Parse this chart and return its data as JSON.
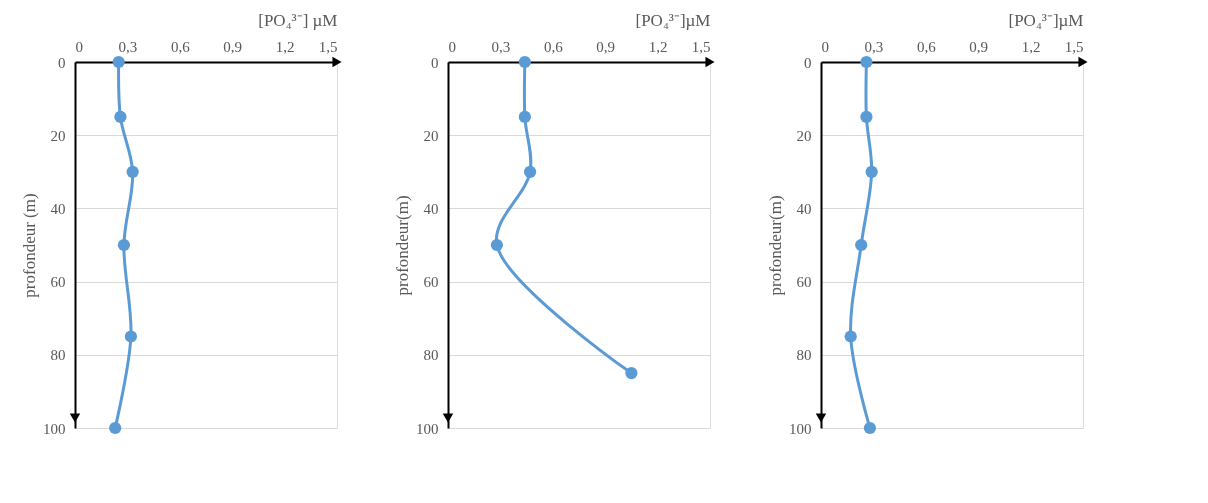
{
  "chart_data": [
    {
      "type": "line",
      "xlabel": "[PO₄³⁻] µM",
      "ylabel": "profondeur (m)",
      "xlim": [
        0,
        1.5
      ],
      "ylim": [
        100,
        0
      ],
      "xticks": [
        0,
        {
          "value": 0.3,
          "label": "0,3"
        },
        {
          "value": 0.6,
          "label": "0,6"
        },
        {
          "value": 0.9,
          "label": "0,9"
        },
        {
          "value": 1.2,
          "label": "1,2"
        },
        {
          "value": 1.5,
          "label": "1,5"
        }
      ],
      "yticks": [
        0,
        20,
        40,
        60,
        80,
        100
      ],
      "grid": "y",
      "marker": "circle",
      "series": [
        {
          "color": "#5b9bd5",
          "x": [
            0.25,
            0.26,
            0.33,
            0.28,
            0.32,
            0.23
          ],
          "values": [
            0,
            15,
            30,
            50,
            75,
            100
          ]
        }
      ]
    },
    {
      "type": "line",
      "xlabel": "[PO₄³⁻]µM",
      "ylabel": "profondeur(m)",
      "xlim": [
        0,
        1.5
      ],
      "ylim": [
        100,
        0
      ],
      "xticks": [
        0,
        {
          "value": 0.3,
          "label": "0,3"
        },
        {
          "value": 0.6,
          "label": "0,6"
        },
        {
          "value": 0.9,
          "label": "0,9"
        },
        {
          "value": 1.2,
          "label": "1,2"
        },
        {
          "value": 1.5,
          "label": "1,5"
        }
      ],
      "yticks": [
        0,
        20,
        40,
        60,
        80,
        100
      ],
      "grid": "y",
      "marker": "circle",
      "series": [
        {
          "color": "#5b9bd5",
          "x": [
            0.44,
            0.44,
            0.47,
            0.28,
            1.05
          ],
          "values": [
            0,
            15,
            30,
            50,
            85
          ]
        }
      ]
    },
    {
      "type": "line",
      "xlabel": "[PO₄³⁻]µM",
      "ylabel": "profondeur(m)",
      "xlim": [
        0,
        1.5
      ],
      "ylim": [
        100,
        0
      ],
      "xticks": [
        0,
        {
          "value": 0.3,
          "label": "0,3"
        },
        {
          "value": 0.6,
          "label": "0,6"
        },
        {
          "value": 0.9,
          "label": "0,9"
        },
        {
          "value": 1.2,
          "label": "1,2"
        },
        {
          "value": 1.5,
          "label": "1,5"
        }
      ],
      "yticks": [
        0,
        20,
        40,
        60,
        80,
        100
      ],
      "grid": "y",
      "marker": "circle",
      "series": [
        {
          "color": "#5b9bd5",
          "x": [
            0.26,
            0.26,
            0.29,
            0.23,
            0.17,
            0.28
          ],
          "values": [
            0,
            15,
            30,
            50,
            75,
            100
          ]
        }
      ]
    }
  ]
}
